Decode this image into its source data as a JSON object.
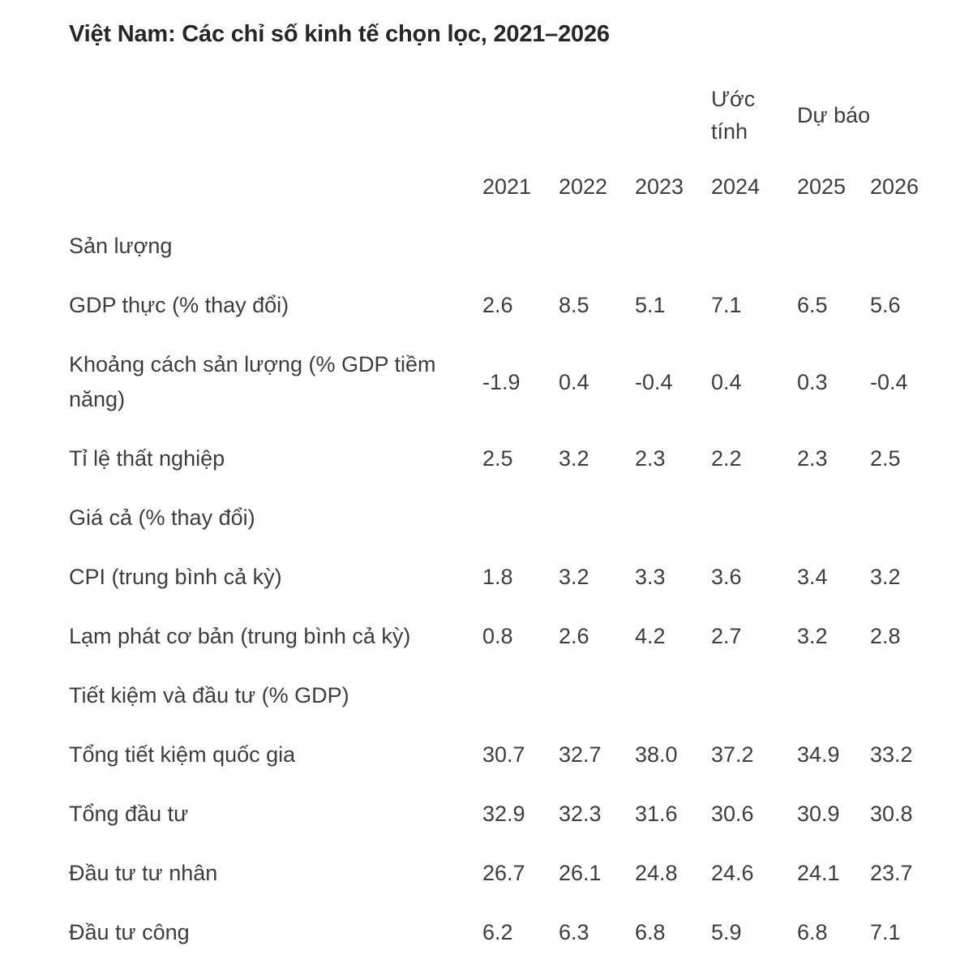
{
  "title": "Việt Nam: Các chỉ số kinh tế chọn lọc, 2021–2026",
  "colors": {
    "background": "#ffffff",
    "title_text": "#262626",
    "body_text": "#3d3d3d"
  },
  "table": {
    "column_groups": {
      "estimate": "Ước tính",
      "forecast": "Dự báo"
    },
    "years": [
      "2021",
      "2022",
      "2023",
      "2024",
      "2025",
      "2026"
    ],
    "rows": [
      {
        "type": "section",
        "label": "Sản lượng"
      },
      {
        "type": "data",
        "label": "GDP thực (% thay đổi)",
        "values": [
          "2.6",
          "8.5",
          "5.1",
          "7.1",
          "6.5",
          "5.6"
        ]
      },
      {
        "type": "data",
        "label": "Khoảng cách sản lượng (% GDP tiềm năng)",
        "values": [
          "-1.9",
          "0.4",
          "-0.4",
          "0.4",
          "0.3",
          "-0.4"
        ]
      },
      {
        "type": "data",
        "label": "Tỉ lệ thất nghiệp",
        "values": [
          "2.5",
          "3.2",
          "2.3",
          "2.2",
          "2.3",
          "2.5"
        ]
      },
      {
        "type": "section",
        "label": "Giá cả (% thay đổi)"
      },
      {
        "type": "data",
        "label": "CPI (trung bình cả kỳ)",
        "values": [
          "1.8",
          "3.2",
          "3.3",
          "3.6",
          "3.4",
          "3.2"
        ]
      },
      {
        "type": "data",
        "label": "Lạm phát cơ bản (trung bình cả kỳ)",
        "values": [
          "0.8",
          "2.6",
          "4.2",
          "2.7",
          "3.2",
          "2.8"
        ]
      },
      {
        "type": "section",
        "label": "Tiết kiệm và đầu tư (% GDP)"
      },
      {
        "type": "data",
        "label": "Tổng tiết kiệm quốc gia",
        "values": [
          "30.7",
          "32.7",
          "38.0",
          "37.2",
          "34.9",
          "33.2"
        ]
      },
      {
        "type": "data",
        "label": "Tổng đầu tư",
        "values": [
          "32.9",
          "32.3",
          "31.6",
          "30.6",
          "30.9",
          "30.8"
        ]
      },
      {
        "type": "data",
        "label": "Đầu tư tư nhân",
        "values": [
          "26.7",
          "26.1",
          "24.8",
          "24.6",
          "24.1",
          "23.7"
        ]
      },
      {
        "type": "data",
        "label": "Đầu tư công",
        "values": [
          "6.2",
          "6.3",
          "6.8",
          "5.9",
          "6.8",
          "7.1"
        ]
      }
    ]
  }
}
